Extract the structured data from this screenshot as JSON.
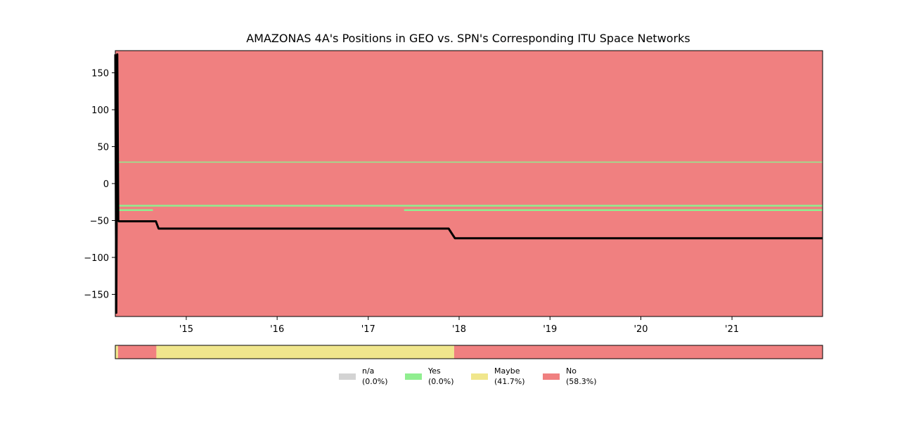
{
  "chart_data": {
    "type": "line",
    "title": "AMAZONAS 4A's Positions in GEO vs. SPN's Corresponding ITU Space Networks",
    "xlabel": "",
    "ylabel": "",
    "x_range": [
      "2014-03-22",
      "2021-12-31"
    ],
    "ylim": [
      -180,
      180
    ],
    "y_ticks": [
      150,
      100,
      50,
      0,
      -50,
      -100,
      -150
    ],
    "y_tick_labels": [
      "150",
      "100",
      "50",
      "0",
      "−50",
      "−100",
      "−150"
    ],
    "x_ticks": [
      {
        "date": "2015-01-01",
        "label": "'15"
      },
      {
        "date": "2016-01-01",
        "label": "'16"
      },
      {
        "date": "2017-01-01",
        "label": "'17"
      },
      {
        "date": "2018-01-01",
        "label": "'18"
      },
      {
        "date": "2019-01-01",
        "label": "'19"
      },
      {
        "date": "2020-01-01",
        "label": "'20"
      },
      {
        "date": "2021-01-01",
        "label": "'21"
      }
    ],
    "grid": false,
    "background_color": "#f08080",
    "position_color": "#000000",
    "network_color": "#90ee90",
    "position_series": {
      "x": [
        "2014-03-22",
        "2014-03-26",
        "2014-03-30",
        "2014-04-03",
        "2014-04-05",
        "2014-09-01",
        "2014-09-12",
        "2017-11-20",
        "2017-12-15",
        "2021-12-31"
      ],
      "y": [
        175,
        -175,
        175,
        -50,
        -51,
        -51,
        -61,
        -61,
        -74,
        -74
      ]
    },
    "itu_networks": [
      {
        "start": "2014-04-01",
        "end": "2021-12-31",
        "y": 29
      },
      {
        "start": "2014-04-01",
        "end": "2021-12-31",
        "y": -30
      },
      {
        "start": "2014-04-01",
        "end": "2014-08-20",
        "y": -36
      },
      {
        "start": "2017-05-25",
        "end": "2021-12-31",
        "y": -36
      }
    ],
    "status_strip": [
      {
        "start": "2014-03-22",
        "end": "2014-04-02",
        "status": "Maybe"
      },
      {
        "start": "2014-04-02",
        "end": "2014-09-03",
        "status": "No"
      },
      {
        "start": "2014-09-03",
        "end": "2017-12-12",
        "status": "Maybe"
      },
      {
        "start": "2017-12-12",
        "end": "2021-12-31",
        "status": "No"
      }
    ],
    "status_colors": {
      "n/a": "#d3d3d3",
      "Yes": "#90ee90",
      "Maybe": "#f0e68c",
      "No": "#f08080"
    },
    "legend_placement": "bottom-center",
    "legend": [
      {
        "name": "n/a",
        "pct": "(0.0%)",
        "color": "#d3d3d3"
      },
      {
        "name": "Yes",
        "pct": "(0.0%)",
        "color": "#90ee90"
      },
      {
        "name": "Maybe",
        "pct": "(41.7%)",
        "color": "#f0e68c"
      },
      {
        "name": "No",
        "pct": "(58.3%)",
        "color": "#f08080"
      }
    ]
  }
}
